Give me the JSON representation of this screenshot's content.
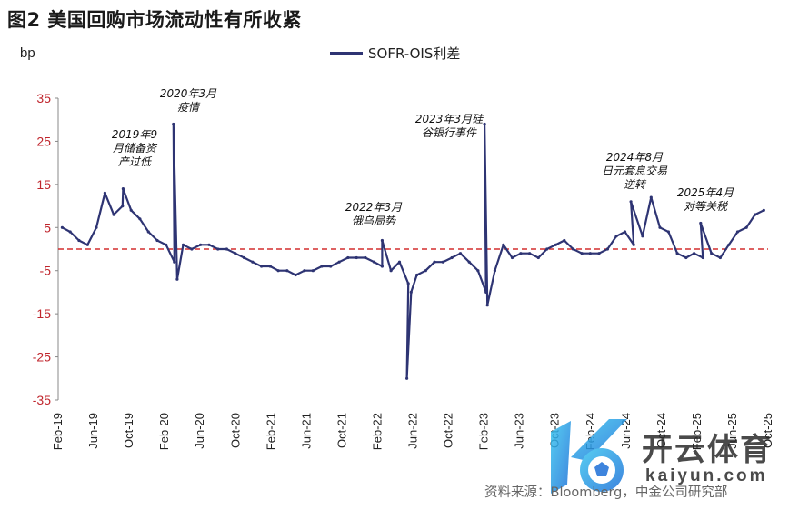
{
  "title": "图2  美国回购市场流动性有所收紧",
  "source": "资料来源：Bloomberg，中金公司研究部",
  "watermark": {
    "brand": "开云体育",
    "url": "kaiyun.com"
  },
  "colors": {
    "series": "#2e3473",
    "zero_line": "#d32f2f",
    "y_tick_text": "#c0262d"
  },
  "chart_data": {
    "type": "line",
    "title": "图2  美国回购市场流动性有所收紧",
    "ylabel": "bp",
    "xlabel": "",
    "ylim": [
      -35,
      35
    ],
    "yticks": [
      35,
      25,
      15,
      5,
      -5,
      -15,
      -25,
      -35
    ],
    "grid": false,
    "legend_position": "top-center",
    "reference_line": {
      "y": 0,
      "style": "dashed",
      "color": "#d32f2f"
    },
    "x_tick_labels": [
      "Feb-19",
      "Jun-19",
      "Oct-19",
      "Feb-20",
      "Jun-20",
      "Oct-20",
      "Feb-21",
      "Jun-21",
      "Oct-21",
      "Feb-22",
      "Jun-22",
      "Oct-22",
      "Feb-23",
      "Jun-23",
      "Oct-23",
      "Feb-24",
      "Jun-24",
      "Oct-24",
      "Feb-25",
      "Jun-25",
      "Oct-25"
    ],
    "series": [
      {
        "name": "SOFR-OIS利差",
        "x": [
          "2019-02",
          "2019-03",
          "2019-04",
          "2019-05",
          "2019-06",
          "2019-07",
          "2019-08",
          "2019-09",
          "2019-09-17",
          "2019-10",
          "2019-11",
          "2019-12",
          "2020-01",
          "2020-02",
          "2020-03",
          "2020-03-12",
          "2020-03-25",
          "2020-04",
          "2020-05",
          "2020-06",
          "2020-07",
          "2020-08",
          "2020-09",
          "2020-10",
          "2020-11",
          "2020-12",
          "2021-01",
          "2021-02",
          "2021-03",
          "2021-04",
          "2021-05",
          "2021-06",
          "2021-07",
          "2021-08",
          "2021-09",
          "2021-10",
          "2021-11",
          "2021-12",
          "2022-01",
          "2022-02",
          "2022-03",
          "2022-03-15",
          "2022-04",
          "2022-05",
          "2022-06",
          "2022-06-10",
          "2022-06-25",
          "2022-07",
          "2022-08",
          "2022-09",
          "2022-10",
          "2022-11",
          "2022-12",
          "2023-01",
          "2023-02",
          "2023-03",
          "2023-03-10",
          "2023-03-20",
          "2023-04",
          "2023-05",
          "2023-06",
          "2023-07",
          "2023-08",
          "2023-09",
          "2023-10",
          "2023-11",
          "2023-12",
          "2024-01",
          "2024-02",
          "2024-03",
          "2024-04",
          "2024-05",
          "2024-06",
          "2024-07",
          "2024-08",
          "2024-08-05",
          "2024-09",
          "2024-10",
          "2024-11",
          "2024-12",
          "2025-01",
          "2025-02",
          "2025-03",
          "2025-04",
          "2025-04-07",
          "2025-05",
          "2025-06",
          "2025-07",
          "2025-08",
          "2025-09",
          "2025-10",
          "2025-11"
        ],
        "values": [
          5,
          4,
          2,
          1,
          5,
          13,
          8,
          10,
          14,
          9,
          7,
          4,
          2,
          1,
          -3,
          29,
          -7,
          1,
          0,
          1,
          1,
          0,
          0,
          -1,
          -2,
          -3,
          -4,
          -4,
          -5,
          -5,
          -6,
          -5,
          -5,
          -4,
          -4,
          -3,
          -2,
          -2,
          -2,
          -3,
          -4,
          2,
          -5,
          -3,
          -8,
          -30,
          -10,
          -6,
          -5,
          -3,
          -3,
          -2,
          -1,
          -3,
          -5,
          -10,
          29,
          -13,
          -5,
          1,
          -2,
          -1,
          -1,
          -2,
          0,
          1,
          2,
          0,
          -1,
          -1,
          -1,
          0,
          3,
          4,
          1,
          11,
          3,
          12,
          5,
          4,
          -1,
          -2,
          -1,
          -2,
          6,
          -1,
          -2,
          1,
          4,
          5,
          8,
          9
        ]
      }
    ],
    "annotations": [
      "2019年9月储备资产过低",
      "2020年3月疫情",
      "2022年3月俄乌局势",
      "2023年3月硅谷银行事件",
      "2024年8月日元套息交易逆转",
      "2025年4月对等关税"
    ]
  }
}
